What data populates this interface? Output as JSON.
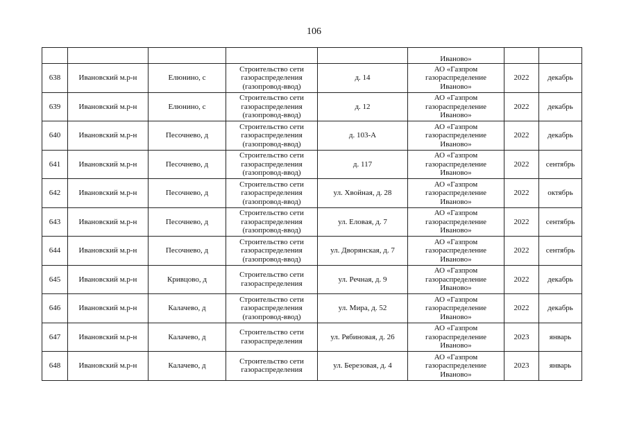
{
  "page_number": "106",
  "continuation_row": {
    "org_tail": "Иваново»"
  },
  "rows": [
    {
      "num": "638",
      "district": "Ивановский м.р-н",
      "locality": "Елюнино, с",
      "work": [
        "Строительство сети",
        "газораспределения",
        "(газопровод-ввод)"
      ],
      "address": "д. 14",
      "org": [
        "АО «Газпром",
        "газораспределение",
        "Иваново»"
      ],
      "year": "2022",
      "month": "декабрь"
    },
    {
      "num": "639",
      "district": "Ивановский м.р-н",
      "locality": "Елюнино, с",
      "work": [
        "Строительство сети",
        "газораспределения",
        "(газопровод-ввод)"
      ],
      "address": "д. 12",
      "org": [
        "АО «Газпром",
        "газораспределение",
        "Иваново»"
      ],
      "year": "2022",
      "month": "декабрь"
    },
    {
      "num": "640",
      "district": "Ивановский м.р-н",
      "locality": "Песочнево, д",
      "work": [
        "Строительство сети",
        "газораспределения",
        "(газопровод-ввод)"
      ],
      "address": "д. 103-А",
      "org": [
        "АО «Газпром",
        "газораспределение",
        "Иваново»"
      ],
      "year": "2022",
      "month": "декабрь"
    },
    {
      "num": "641",
      "district": "Ивановский м.р-н",
      "locality": "Песочнево, д",
      "work": [
        "Строительство сети",
        "газораспределения",
        "(газопровод-ввод)"
      ],
      "address": "д. 117",
      "org": [
        "АО «Газпром",
        "газораспределение",
        "Иваново»"
      ],
      "year": "2022",
      "month": "сентябрь"
    },
    {
      "num": "642",
      "district": "Ивановский м.р-н",
      "locality": "Песочнево, д",
      "work": [
        "Строительство сети",
        "газораспределения",
        "(газопровод-ввод)"
      ],
      "address": "ул. Хвойная, д. 28",
      "org": [
        "АО «Газпром",
        "газораспределение",
        "Иваново»"
      ],
      "year": "2022",
      "month": "октябрь"
    },
    {
      "num": "643",
      "district": "Ивановский м.р-н",
      "locality": "Песочнево, д",
      "work": [
        "Строительство сети",
        "газораспределения",
        "(газопровод-ввод)"
      ],
      "address": "ул. Еловая, д. 7",
      "org": [
        "АО «Газпром",
        "газораспределение",
        "Иваново»"
      ],
      "year": "2022",
      "month": "сентябрь"
    },
    {
      "num": "644",
      "district": "Ивановский м.р-н",
      "locality": "Песочнево, д",
      "work": [
        "Строительство сети",
        "газораспределения",
        "(газопровод-ввод)"
      ],
      "address": "ул. Дворянская, д. 7",
      "org": [
        "АО «Газпром",
        "газораспределение",
        "Иваново»"
      ],
      "year": "2022",
      "month": "сентябрь"
    },
    {
      "num": "645",
      "district": "Ивановский м.р-н",
      "locality": "Кривцово, д",
      "work": [
        "Строительство сети",
        "газораспределения"
      ],
      "address": "ул. Речная, д. 9",
      "org": [
        "АО «Газпром",
        "газораспределение",
        "Иваново»"
      ],
      "year": "2022",
      "month": "декабрь"
    },
    {
      "num": "646",
      "district": "Ивановский м.р-н",
      "locality": "Калачево, д",
      "work": [
        "Строительство сети",
        "газораспределения",
        "(газопровод-ввод)"
      ],
      "address": "ул. Мира, д. 52",
      "org": [
        "АО «Газпром",
        "газораспределение",
        "Иваново»"
      ],
      "year": "2022",
      "month": "декабрь"
    },
    {
      "num": "647",
      "district": "Ивановский м.р-н",
      "locality": "Калачево, д",
      "work": [
        "Строительство сети",
        "газораспределения"
      ],
      "address": "ул. Рябиновая, д. 26",
      "org": [
        "АО «Газпром",
        "газораспределение",
        "Иваново»"
      ],
      "year": "2023",
      "month": "январь"
    },
    {
      "num": "648",
      "district": "Ивановский м.р-н",
      "locality": "Калачево, д",
      "work": [
        "Строительство сети",
        "газораспределения"
      ],
      "address": "ул. Березовая, д. 4",
      "org": [
        "АО «Газпром",
        "газораспределение",
        "Иваново»"
      ],
      "year": "2023",
      "month": "январь"
    }
  ]
}
